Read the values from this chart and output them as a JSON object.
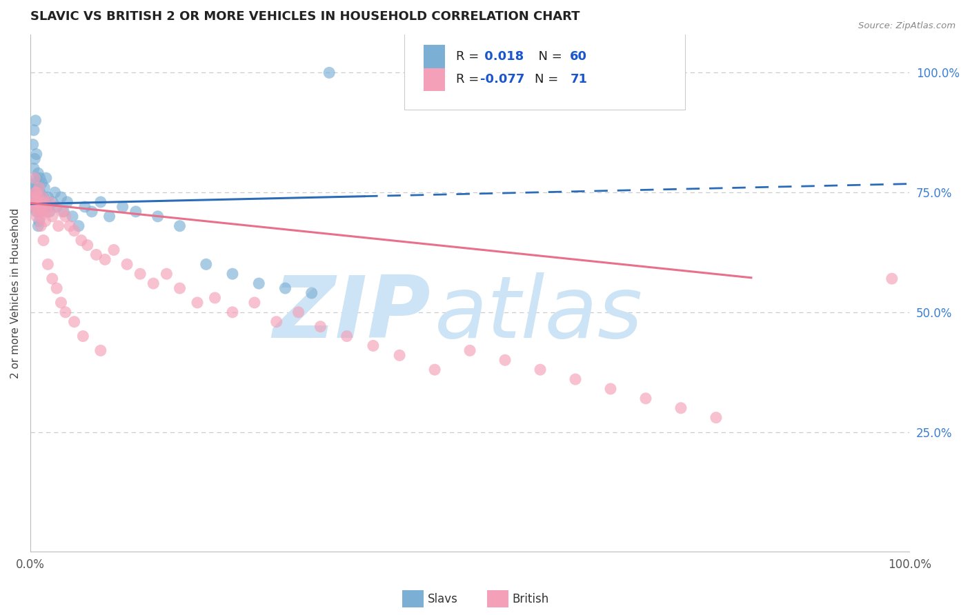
{
  "title": "SLAVIC VS BRITISH 2 OR MORE VEHICLES IN HOUSEHOLD CORRELATION CHART",
  "source": "Source: ZipAtlas.com",
  "ylabel": "2 or more Vehicles in Household",
  "right_yticks": [
    "100.0%",
    "75.0%",
    "50.0%",
    "25.0%"
  ],
  "right_ytick_vals": [
    1.0,
    0.75,
    0.5,
    0.25
  ],
  "slavs_color": "#7bafd4",
  "british_color": "#f4a0b8",
  "trendline_slavs_color": "#2b6cb8",
  "trendline_british_color": "#e8708a",
  "grid_color": "#cccccc",
  "background_color": "#ffffff",
  "watermark_zip": "ZIP",
  "watermark_atlas": "atlas",
  "watermark_color": "#cce4f5",
  "legend_R_color": "#1a56cc",
  "legend_label_color": "#222222",
  "xlim": [
    0.0,
    1.0
  ],
  "ylim": [
    0.0,
    1.08
  ],
  "slavs_x": [
    0.003,
    0.004,
    0.004,
    0.005,
    0.005,
    0.005,
    0.006,
    0.006,
    0.007,
    0.007,
    0.007,
    0.008,
    0.008,
    0.009,
    0.009,
    0.009,
    0.01,
    0.01,
    0.01,
    0.011,
    0.011,
    0.012,
    0.012,
    0.013,
    0.013,
    0.014,
    0.015,
    0.016,
    0.017,
    0.018,
    0.019,
    0.02,
    0.022,
    0.025,
    0.028,
    0.03,
    0.035,
    0.038,
    0.042,
    0.048,
    0.055,
    0.062,
    0.07,
    0.08,
    0.09,
    0.105,
    0.12,
    0.145,
    0.17,
    0.2,
    0.23,
    0.26,
    0.29,
    0.32,
    0.003,
    0.004,
    0.006,
    0.007,
    0.009,
    0.34
  ],
  "slavs_y": [
    0.72,
    0.75,
    0.8,
    0.73,
    0.76,
    0.82,
    0.74,
    0.77,
    0.75,
    0.78,
    0.71,
    0.73,
    0.76,
    0.74,
    0.72,
    0.79,
    0.73,
    0.76,
    0.69,
    0.75,
    0.78,
    0.74,
    0.71,
    0.73,
    0.77,
    0.72,
    0.74,
    0.76,
    0.73,
    0.78,
    0.72,
    0.74,
    0.71,
    0.73,
    0.75,
    0.72,
    0.74,
    0.71,
    0.73,
    0.7,
    0.68,
    0.72,
    0.71,
    0.73,
    0.7,
    0.72,
    0.71,
    0.7,
    0.68,
    0.6,
    0.58,
    0.56,
    0.55,
    0.54,
    0.85,
    0.88,
    0.9,
    0.83,
    0.68,
    1.0
  ],
  "british_x": [
    0.003,
    0.004,
    0.005,
    0.005,
    0.006,
    0.007,
    0.007,
    0.008,
    0.009,
    0.009,
    0.01,
    0.01,
    0.011,
    0.012,
    0.013,
    0.014,
    0.015,
    0.016,
    0.017,
    0.018,
    0.02,
    0.022,
    0.025,
    0.028,
    0.032,
    0.036,
    0.04,
    0.045,
    0.05,
    0.058,
    0.065,
    0.075,
    0.085,
    0.095,
    0.11,
    0.125,
    0.14,
    0.155,
    0.17,
    0.19,
    0.21,
    0.23,
    0.255,
    0.28,
    0.305,
    0.33,
    0.36,
    0.39,
    0.42,
    0.46,
    0.5,
    0.54,
    0.58,
    0.62,
    0.66,
    0.7,
    0.74,
    0.78,
    0.006,
    0.008,
    0.012,
    0.015,
    0.02,
    0.025,
    0.03,
    0.035,
    0.04,
    0.05,
    0.06,
    0.08,
    0.98
  ],
  "british_y": [
    0.72,
    0.73,
    0.74,
    0.78,
    0.72,
    0.75,
    0.7,
    0.73,
    0.71,
    0.74,
    0.72,
    0.76,
    0.73,
    0.7,
    0.72,
    0.74,
    0.71,
    0.73,
    0.69,
    0.72,
    0.71,
    0.73,
    0.7,
    0.72,
    0.68,
    0.71,
    0.7,
    0.68,
    0.67,
    0.65,
    0.64,
    0.62,
    0.61,
    0.63,
    0.6,
    0.58,
    0.56,
    0.58,
    0.55,
    0.52,
    0.53,
    0.5,
    0.52,
    0.48,
    0.5,
    0.47,
    0.45,
    0.43,
    0.41,
    0.38,
    0.42,
    0.4,
    0.38,
    0.36,
    0.34,
    0.32,
    0.3,
    0.28,
    0.75,
    0.73,
    0.68,
    0.65,
    0.6,
    0.57,
    0.55,
    0.52,
    0.5,
    0.48,
    0.45,
    0.42,
    0.57
  ],
  "trendline_slavs_x0": 0.0,
  "trendline_slavs_y0": 0.726,
  "trendline_slavs_x1": 0.38,
  "trendline_slavs_y1": 0.742,
  "trendline_slavs_dash_x0": 0.38,
  "trendline_slavs_dash_y0": 0.742,
  "trendline_slavs_dash_x1": 1.0,
  "trendline_slavs_dash_y1": 0.768,
  "trendline_british_x0": 0.0,
  "trendline_british_y0": 0.728,
  "trendline_british_x1": 0.82,
  "trendline_british_y1": 0.572
}
